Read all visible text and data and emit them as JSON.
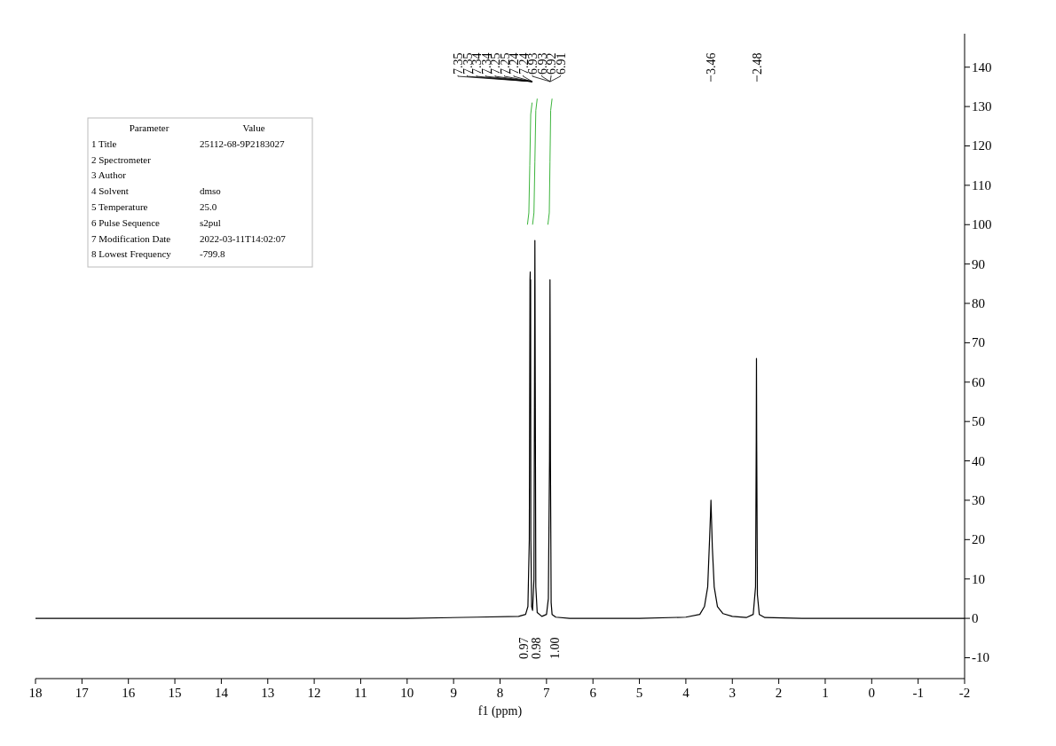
{
  "chart_data": {
    "type": "line",
    "xlabel": "f1 (ppm)",
    "xlim": [
      18,
      -2
    ],
    "xticks": [
      18,
      17,
      16,
      15,
      14,
      13,
      12,
      11,
      10,
      9,
      8,
      7,
      6,
      5,
      4,
      3,
      2,
      1,
      0,
      -1,
      -2
    ],
    "ylim": [
      -15.3,
      148.5
    ],
    "yticks": [
      -10,
      0,
      10,
      20,
      30,
      40,
      50,
      60,
      70,
      80,
      90,
      100,
      110,
      120,
      130,
      140
    ],
    "grid": false,
    "series": [
      {
        "color": "#000000",
        "x": [
          18,
          16,
          14,
          12,
          10,
          8.5,
          7.6,
          7.45,
          7.4,
          7.37,
          7.355,
          7.35,
          7.345,
          7.342,
          7.337,
          7.32,
          7.3,
          7.27,
          7.258,
          7.25,
          7.242,
          7.23,
          7.2,
          7.1,
          7.0,
          6.96,
          6.935,
          6.925,
          6.915,
          6.9,
          6.88,
          6.8,
          6.5,
          5,
          4,
          3.7,
          3.6,
          3.53,
          3.49,
          3.465,
          3.46,
          3.455,
          3.43,
          3.39,
          3.32,
          3.2,
          3.0,
          2.7,
          2.55,
          2.5,
          2.485,
          2.48,
          2.475,
          2.46,
          2.42,
          2.3,
          1.5,
          0,
          -1,
          -2
        ],
        "values": [
          0,
          0,
          0,
          0,
          0,
          0.3,
          0.5,
          1,
          3,
          20,
          86,
          88,
          60,
          86,
          20,
          3,
          2,
          10,
          60,
          96,
          60,
          8,
          1.5,
          0.5,
          1,
          5,
          40,
          86,
          40,
          4,
          1,
          0.3,
          0,
          0,
          0.3,
          1,
          3,
          8,
          20,
          28,
          30,
          28,
          18,
          8,
          3,
          1.2,
          0.5,
          0.2,
          1,
          8,
          45,
          66,
          45,
          6,
          1,
          0.2,
          0,
          0,
          0,
          0
        ]
      },
      {
        "color": "#3cb43c",
        "x": [
          7.41,
          7.38,
          7.36,
          7.34,
          7.31
        ],
        "values": [
          100,
          103,
          115,
          128,
          131
        ]
      },
      {
        "color": "#3cb43c",
        "x": [
          7.3,
          7.27,
          7.25,
          7.23,
          7.2
        ],
        "values": [
          100,
          103,
          116,
          129,
          132
        ]
      },
      {
        "color": "#3cb43c",
        "x": [
          6.97,
          6.94,
          6.925,
          6.91,
          6.88
        ],
        "values": [
          100,
          103,
          116,
          129,
          132
        ]
      }
    ],
    "annotations": [
      "7.35",
      "7.35",
      "7.34",
      "7.34",
      "7.25",
      "7.25",
      "7.24",
      "7.24",
      "6.93",
      "6.93",
      "6.92",
      "6.91",
      "3.46",
      "2.48",
      "0.97",
      "0.98",
      "1.00",
      "Parameter",
      "1 Title",
      "2 Spectrometer",
      "3 Author",
      "4 Solvent",
      "5 Temperature",
      "6 Pulse Sequence",
      "7 Modification Date",
      "8 Lowest Frequency",
      "Value",
      "25112-68-9P2183027",
      "dmso",
      "25.0",
      "s2pul",
      "2022-03-11T14:02:07",
      "-799.8"
    ]
  }
}
